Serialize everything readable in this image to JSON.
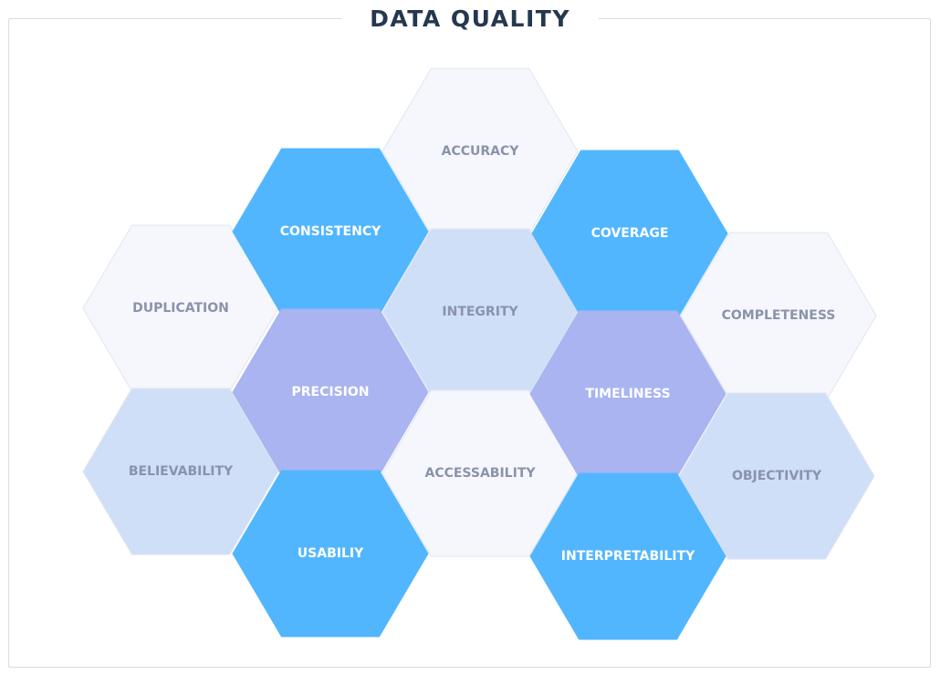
{
  "title": "DATA QUALITY",
  "colors": {
    "title": "#24384f",
    "frame_border": "#d7dbe3",
    "blue_fill": "#52b6ff",
    "blue_text": "#ffffff",
    "lavender_fill": "#a9b4f0",
    "lavender_text": "#ffffff",
    "lightblue_fill": "#cfdff7",
    "lightblue_text": "#8a93aa",
    "pale_fill": "#f5f7fc",
    "pale_stroke": "#dfe5f1",
    "pale_text": "#8a93aa"
  },
  "hexagons": [
    {
      "label": "ACCURACY",
      "style": "pale"
    },
    {
      "label": "CONSISTENCY",
      "style": "blue"
    },
    {
      "label": "COVERAGE",
      "style": "blue"
    },
    {
      "label": "DUPLICATION",
      "style": "pale"
    },
    {
      "label": "INTEGRITY",
      "style": "lightblue"
    },
    {
      "label": "COMPLETENESS",
      "style": "pale"
    },
    {
      "label": "PRECISION",
      "style": "lavender"
    },
    {
      "label": "TIMELINESS",
      "style": "lavender"
    },
    {
      "label": "BELIEVABILITY",
      "style": "lightblue"
    },
    {
      "label": "ACCESSABILITY",
      "style": "pale"
    },
    {
      "label": "OBJECTIVITY",
      "style": "lightblue"
    },
    {
      "label": "USABILIY",
      "style": "blue"
    },
    {
      "label": "INTERPRETABILITY",
      "style": "blue"
    }
  ]
}
